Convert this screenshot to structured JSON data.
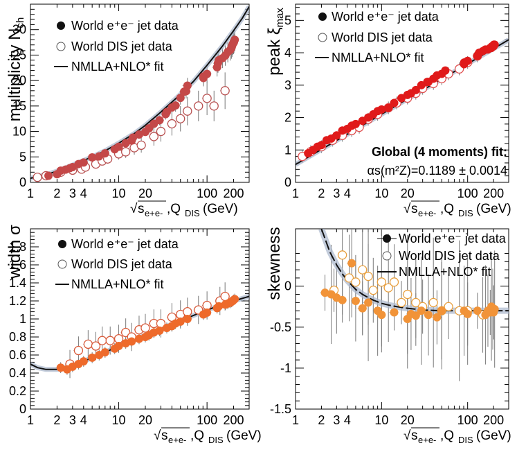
{
  "x_axis_label": {
    "sqrt": "√",
    "s_sub": "e+e-",
    "comma": ",Q",
    "q_sub": "DIS",
    "unit": " (GeV)"
  },
  "x_ticks": [
    1,
    2,
    3,
    4,
    10,
    20,
    100,
    200
  ],
  "legend": {
    "ee": "World e⁺e⁻ jet data",
    "dis": "World DIS jet data",
    "fit": "NMLLA+NLO* fit"
  },
  "annotation": {
    "title": "Global (4 moments) fit:",
    "alpha_text": "αs(m²Z)=0.1189 ± 0.0014"
  },
  "colors": {
    "panel1_ee": "#c44848",
    "panel1_dis": "#ffffff",
    "panel2_ee": "#e01a1a",
    "panel3_ee": "#ee6a2b",
    "panel4_ee": "#f19338",
    "dis_edge": "#d85a3a",
    "fit_line": "#111111",
    "band": "#aab6cc"
  },
  "chart_data": [
    {
      "type": "scatter",
      "panel": "multiplicity",
      "ylabel": "multiplicity N_ch",
      "xlabel": "√s_{e+e-},Q_{DIS} (GeV)",
      "xscale": "log",
      "xlim": [
        1,
        300
      ],
      "ylim": [
        0,
        35
      ],
      "yticks": [
        0,
        5,
        10,
        15,
        20,
        25,
        30
      ],
      "fit": {
        "x": [
          1,
          1.5,
          2,
          3,
          5,
          7,
          10,
          15,
          20,
          30,
          50,
          70,
          100,
          150,
          200,
          250,
          300
        ],
        "y": [
          0.8,
          1.5,
          2.2,
          3.4,
          5.0,
          6.2,
          7.7,
          9.6,
          11.2,
          13.8,
          17.3,
          19.8,
          23.0,
          26.8,
          29.8,
          32.2,
          34.5
        ]
      },
      "series": [
        {
          "name": "World e+e- jet data",
          "x": [
            1.6,
            2.0,
            2.2,
            2.5,
            2.8,
            3.0,
            3.5,
            4.0,
            5.0,
            6.0,
            7.0,
            9.0,
            10.0,
            12.0,
            14.0,
            14.5,
            17.0,
            20.0,
            22.0,
            25.0,
            29.0,
            34.0,
            35.0,
            40.0,
            44.0,
            50.0,
            55.0,
            58.0,
            60.0,
            91.0,
            91.2,
            100.0,
            130.0,
            133.0,
            136.0,
            150.0,
            161.0,
            172.0,
            183.0,
            189.0,
            192.0,
            196.0,
            200.0,
            202.0,
            206.0
          ],
          "y": [
            1.3,
            1.6,
            2.3,
            2.5,
            2.8,
            3.0,
            3.6,
            3.9,
            4.9,
            5.1,
            5.7,
            6.5,
            7.0,
            7.7,
            8.2,
            8.8,
            9.4,
            9.9,
            10.6,
            11.5,
            12.2,
            13.4,
            13.8,
            14.7,
            15.1,
            16.6,
            17.8,
            17.9,
            19.0,
            20.5,
            20.8,
            21.3,
            22.6,
            23.4,
            24.0,
            24.4,
            24.9,
            25.6,
            26.0,
            26.4,
            26.8,
            27.2,
            27.4,
            27.6,
            28.0
          ]
        },
        {
          "name": "World DIS jet data",
          "x": [
            1.2,
            1.5,
            2.2,
            3.0,
            3.8,
            4.2,
            5.5,
            6.5,
            7.5,
            10.0,
            12.0,
            15.0,
            18.0,
            25.0,
            30.0,
            40.0,
            50.0,
            60.0,
            80.0,
            100.0,
            120.0,
            160.0
          ],
          "y": [
            1.0,
            1.3,
            2.0,
            2.4,
            2.6,
            3.0,
            3.6,
            4.2,
            4.6,
            5.6,
            6.0,
            6.8,
            7.3,
            9.0,
            10.0,
            11.5,
            12.5,
            14.0,
            15.0,
            16.5,
            15.0,
            18.0
          ]
        }
      ]
    },
    {
      "type": "scatter",
      "panel": "peak",
      "ylabel": "peak ξ_max",
      "xlabel": "√s_{e+e-},Q_{DIS} (GeV)",
      "xscale": "log",
      "xlim": [
        1,
        300
      ],
      "ylim": [
        0,
        5.5
      ],
      "yticks": [
        0,
        1,
        2,
        3,
        4,
        5
      ],
      "fit": {
        "x": [
          1,
          300
        ],
        "y": [
          0.55,
          4.4
        ]
      },
      "series": [
        {
          "name": "World e+e- jet data",
          "x": [
            1.4,
            1.6,
            1.8,
            2.0,
            2.3,
            2.6,
            3.0,
            3.5,
            4.0,
            4.5,
            5.0,
            6.0,
            7.0,
            8.0,
            9.0,
            10.0,
            12.0,
            14.0,
            17.0,
            20.0,
            22.0,
            25.0,
            29.0,
            34.0,
            35.0,
            40.0,
            44.0,
            50.0,
            55.0,
            91.0,
            91.2,
            100.0,
            130.0,
            133.0,
            136.0,
            150.0,
            161.0,
            172.0,
            183.0,
            189.0,
            192.0,
            196.0,
            200.0,
            202.0,
            206.0
          ],
          "y": [
            0.9,
            1.0,
            1.1,
            1.15,
            1.3,
            1.35,
            1.45,
            1.6,
            1.65,
            1.75,
            1.8,
            1.9,
            2.0,
            2.1,
            2.2,
            2.25,
            2.3,
            2.45,
            2.6,
            2.7,
            2.75,
            2.85,
            3.0,
            3.1,
            3.1,
            3.2,
            3.3,
            3.35,
            3.45,
            3.65,
            3.7,
            3.75,
            3.9,
            3.95,
            4.0,
            4.05,
            4.1,
            4.1,
            4.15,
            4.15,
            4.2,
            4.2,
            4.2,
            4.25,
            4.25
          ]
        },
        {
          "name": "World DIS jet data",
          "x": [
            1.2,
            1.5,
            2.0,
            2.7,
            3.5,
            4.5,
            5.5,
            7.0,
            9.0,
            12.0,
            15.0,
            20.0,
            25.0,
            30.0,
            40.0,
            50.0,
            60.0,
            80.0,
            100.0,
            130.0
          ],
          "y": [
            0.8,
            0.95,
            1.1,
            1.3,
            1.45,
            1.6,
            1.7,
            1.95,
            2.1,
            2.3,
            2.45,
            2.6,
            2.75,
            2.9,
            3.05,
            3.2,
            3.35,
            3.5,
            3.7,
            3.9
          ]
        }
      ]
    },
    {
      "type": "scatter",
      "panel": "width",
      "ylabel": "width σ",
      "xlabel": "√s_{e+e-},Q_{DIS} (GeV)",
      "xscale": "log",
      "xlim": [
        1,
        300
      ],
      "ylim": [
        0,
        2.0
      ],
      "yticks": [
        0,
        0.2,
        0.4,
        0.6,
        0.8,
        1,
        1.2,
        1.4,
        1.6,
        1.8
      ],
      "fit": {
        "x": [
          1.0,
          1.2,
          1.5,
          2.0,
          3.0,
          5.0,
          7.0,
          10.0,
          20.0,
          50.0,
          100.0,
          200.0,
          300.0
        ],
        "y": [
          0.5,
          0.46,
          0.44,
          0.44,
          0.48,
          0.57,
          0.63,
          0.7,
          0.82,
          0.98,
          1.1,
          1.2,
          1.25
        ]
      },
      "series": [
        {
          "name": "World e+e- jet data",
          "x": [
            2.2,
            2.6,
            3.0,
            3.5,
            4.0,
            5.0,
            6.0,
            7.0,
            9.0,
            10.0,
            12.0,
            14.0,
            17.0,
            20.0,
            22.0,
            25.0,
            29.0,
            35.0,
            40.0,
            44.0,
            50.0,
            60.0,
            91.0,
            100.0,
            130.0,
            136.0,
            161.0,
            172.0,
            183.0,
            189.0,
            196.0,
            200.0,
            206.0
          ],
          "y": [
            0.46,
            0.44,
            0.47,
            0.5,
            0.53,
            0.57,
            0.6,
            0.63,
            0.67,
            0.7,
            0.73,
            0.75,
            0.78,
            0.8,
            0.82,
            0.85,
            0.87,
            0.9,
            0.92,
            0.95,
            0.97,
            1.0,
            1.05,
            1.07,
            1.12,
            1.14,
            1.16,
            1.17,
            1.18,
            1.19,
            1.2,
            1.21,
            1.22
          ]
        },
        {
          "name": "World DIS jet data",
          "x": [
            2.8,
            3.5,
            4.5,
            5.5,
            6.5,
            8.0,
            10.0,
            12.0,
            14.0,
            17.0,
            20.0,
            25.0,
            30.0,
            40.0,
            50.0,
            60.0,
            80.0,
            100.0,
            140.0,
            160.0
          ],
          "y": [
            0.5,
            0.65,
            0.72,
            0.7,
            0.76,
            0.76,
            0.78,
            0.85,
            0.8,
            0.88,
            0.9,
            0.95,
            0.95,
            1.02,
            1.05,
            1.08,
            1.1,
            1.15,
            1.2,
            1.25
          ]
        }
      ]
    },
    {
      "type": "scatter",
      "panel": "skewness",
      "ylabel": "skewness",
      "xlabel": "√s_{e+e-},Q_{DIS} (GeV)",
      "xscale": "log",
      "xlim": [
        1,
        300
      ],
      "ylim": [
        -1.5,
        0.7
      ],
      "yticks": [
        -1.5,
        -1,
        -0.5,
        0
      ],
      "fit": {
        "x": [
          2.0,
          2.5,
          3.0,
          3.5,
          4.0,
          5.0,
          6.0,
          7.0,
          8.0,
          10.0,
          12.0,
          15.0,
          20.0,
          30.0,
          50.0,
          100.0,
          200.0,
          300.0
        ],
        "y": [
          0.7,
          0.42,
          0.26,
          0.15,
          0.07,
          -0.04,
          -0.1,
          -0.14,
          -0.17,
          -0.21,
          -0.23,
          -0.25,
          -0.27,
          -0.29,
          -0.3,
          -0.3,
          -0.3,
          -0.3
        ]
      },
      "series": [
        {
          "name": "World e+e- jet data",
          "x": [
            2.2,
            2.6,
            3.0,
            3.5,
            4.5,
            5.0,
            6.0,
            7.0,
            9.0,
            10.0,
            14.0,
            20.0,
            22.0,
            25.0,
            29.0,
            35.0,
            44.0,
            50.0,
            91.0,
            100.0,
            130.0,
            161.0,
            172.0,
            183.0,
            189.0,
            196.0,
            200.0,
            206.0
          ],
          "y": [
            -0.08,
            -0.1,
            -0.14,
            -0.17,
            0.28,
            -0.18,
            -0.27,
            -0.2,
            -0.3,
            -0.35,
            -0.32,
            -0.4,
            -0.34,
            -0.36,
            -0.3,
            -0.35,
            -0.38,
            -0.3,
            -0.3,
            -0.34,
            -0.3,
            -0.35,
            -0.3,
            -0.32,
            -0.25,
            -0.28,
            -0.32,
            -0.28
          ]
        },
        {
          "name": "World DIS jet data",
          "x": [
            2.8,
            3.5,
            4.2,
            5.0,
            6.0,
            7.0,
            8.0,
            10.0,
            12.0,
            14.0,
            17.0,
            20.0,
            25.0,
            30.0,
            40.0,
            50.0,
            60.0,
            80.0,
            100.0,
            150.0
          ],
          "y": [
            -0.05,
            0.38,
            0.1,
            0.05,
            0.2,
            0.12,
            -0.05,
            0.05,
            -0.02,
            0.05,
            -0.2,
            -0.1,
            -0.2,
            -0.25,
            -0.2,
            -0.3,
            -0.25,
            -0.3,
            -0.3,
            -0.35
          ]
        }
      ]
    }
  ]
}
